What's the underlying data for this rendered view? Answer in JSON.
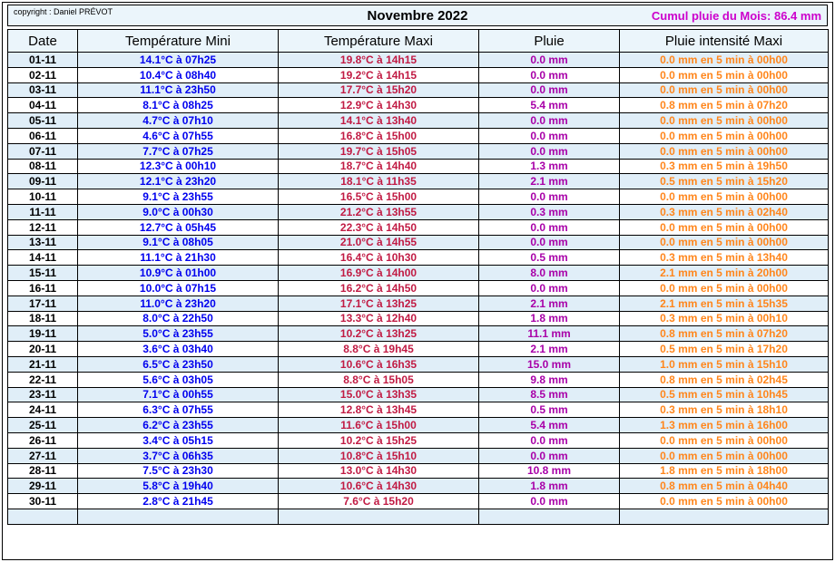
{
  "header": {
    "copyright": "copyright : Daniel PRÉVOT",
    "title": "Novembre 2022",
    "cumul": "Cumul pluie du Mois: 86.4 mm"
  },
  "table": {
    "columns": [
      "Date",
      "Température Mini",
      "Température Maxi",
      "Pluie",
      "Pluie intensité Maxi"
    ],
    "rows": [
      {
        "date": "01-11",
        "tmin": "14.1°C à 07h25",
        "tmax": "19.8°C à 14h15",
        "pluie": "0.0 mm",
        "intensite": "0.0 mm en 5 min à 00h00"
      },
      {
        "date": "02-11",
        "tmin": "10.4°C à 08h40",
        "tmax": "19.2°C à 14h15",
        "pluie": "0.0 mm",
        "intensite": "0.0 mm en 5 min à 00h00"
      },
      {
        "date": "03-11",
        "tmin": "11.1°C à 23h50",
        "tmax": "17.7°C à 15h20",
        "pluie": "0.0 mm",
        "intensite": "0.0 mm en 5 min à 00h00"
      },
      {
        "date": "04-11",
        "tmin": "8.1°C à 08h25",
        "tmax": "12.9°C à 14h30",
        "pluie": "5.4 mm",
        "intensite": "0.8 mm en 5 min à 07h20"
      },
      {
        "date": "05-11",
        "tmin": "4.7°C à 07h10",
        "tmax": "14.1°C à 13h40",
        "pluie": "0.0 mm",
        "intensite": "0.0 mm en 5 min à 00h00"
      },
      {
        "date": "06-11",
        "tmin": "4.6°C à 07h55",
        "tmax": "16.8°C à 15h00",
        "pluie": "0.0 mm",
        "intensite": "0.0 mm en 5 min à 00h00"
      },
      {
        "date": "07-11",
        "tmin": "7.7°C à 07h25",
        "tmax": "19.7°C à 15h05",
        "pluie": "0.0 mm",
        "intensite": "0.0 mm en 5 min à 00h00"
      },
      {
        "date": "08-11",
        "tmin": "12.3°C à 00h10",
        "tmax": "18.7°C à 14h40",
        "pluie": "1.3 mm",
        "intensite": "0.3 mm en 5 min à 19h50"
      },
      {
        "date": "09-11",
        "tmin": "12.1°C à 23h20",
        "tmax": "18.1°C à 11h35",
        "pluie": "2.1 mm",
        "intensite": "0.5 mm en 5 min à 15h20"
      },
      {
        "date": "10-11",
        "tmin": "9.1°C à 23h55",
        "tmax": "16.5°C à 15h00",
        "pluie": "0.0 mm",
        "intensite": "0.0 mm en 5 min à 00h00"
      },
      {
        "date": "11-11",
        "tmin": "9.0°C à 00h30",
        "tmax": "21.2°C à 13h55",
        "pluie": "0.3 mm",
        "intensite": "0.3 mm en 5 min à 02h40"
      },
      {
        "date": "12-11",
        "tmin": "12.7°C à 05h45",
        "tmax": "22.3°C à 14h50",
        "pluie": "0.0 mm",
        "intensite": "0.0 mm en 5 min à 00h00"
      },
      {
        "date": "13-11",
        "tmin": "9.1°C à 08h05",
        "tmax": "21.0°C à 14h55",
        "pluie": "0.0 mm",
        "intensite": "0.0 mm en 5 min à 00h00"
      },
      {
        "date": "14-11",
        "tmin": "11.1°C à 21h30",
        "tmax": "16.4°C à 10h30",
        "pluie": "0.5 mm",
        "intensite": "0.3 mm en 5 min à 13h40"
      },
      {
        "date": "15-11",
        "tmin": "10.9°C à 01h00",
        "tmax": "16.9°C à 14h00",
        "pluie": "8.0 mm",
        "intensite": "2.1 mm en 5 min à 20h00"
      },
      {
        "date": "16-11",
        "tmin": "10.0°C à 07h15",
        "tmax": "16.2°C à 14h50",
        "pluie": "0.0 mm",
        "intensite": "0.0 mm en 5 min à 00h00"
      },
      {
        "date": "17-11",
        "tmin": "11.0°C à 23h20",
        "tmax": "17.1°C à 13h25",
        "pluie": "2.1 mm",
        "intensite": "2.1 mm en 5 min à 15h35"
      },
      {
        "date": "18-11",
        "tmin": "8.0°C à 22h50",
        "tmax": "13.3°C à 12h40",
        "pluie": "1.8 mm",
        "intensite": "0.3 mm en 5 min à 00h10"
      },
      {
        "date": "19-11",
        "tmin": "5.0°C à 23h55",
        "tmax": "10.2°C à 13h25",
        "pluie": "11.1 mm",
        "intensite": "0.8 mm en 5 min à 07h20"
      },
      {
        "date": "20-11",
        "tmin": "3.6°C à 03h40",
        "tmax": "8.8°C à 19h45",
        "pluie": "2.1 mm",
        "intensite": "0.5 mm en 5 min à 17h20"
      },
      {
        "date": "21-11",
        "tmin": "6.5°C à 23h50",
        "tmax": "10.6°C à 16h35",
        "pluie": "15.0 mm",
        "intensite": "1.0 mm en 5 min à 15h10"
      },
      {
        "date": "22-11",
        "tmin": "5.6°C à 03h05",
        "tmax": "8.8°C à 15h05",
        "pluie": "9.8 mm",
        "intensite": "0.8 mm en 5 min à 02h45"
      },
      {
        "date": "23-11",
        "tmin": "7.1°C à 00h55",
        "tmax": "15.0°C à 13h35",
        "pluie": "8.5 mm",
        "intensite": "0.5 mm en 5 min à 10h45"
      },
      {
        "date": "24-11",
        "tmin": "6.3°C à 07h55",
        "tmax": "12.8°C à 13h45",
        "pluie": "0.5 mm",
        "intensite": "0.3 mm en 5 min à 18h10"
      },
      {
        "date": "25-11",
        "tmin": "6.2°C à 23h55",
        "tmax": "11.6°C à 15h00",
        "pluie": "5.4 mm",
        "intensite": "1.3 mm en 5 min à 16h00"
      },
      {
        "date": "26-11",
        "tmin": "3.4°C à 05h15",
        "tmax": "10.2°C à 15h25",
        "pluie": "0.0 mm",
        "intensite": "0.0 mm en 5 min à 00h00"
      },
      {
        "date": "27-11",
        "tmin": "3.7°C à 06h35",
        "tmax": "10.8°C à 15h10",
        "pluie": "0.0 mm",
        "intensite": "0.0 mm en 5 min à 00h00"
      },
      {
        "date": "28-11",
        "tmin": "7.5°C à 23h30",
        "tmax": "13.0°C à 14h30",
        "pluie": "10.8 mm",
        "intensite": "1.8 mm en 5 min à 18h00"
      },
      {
        "date": "29-11",
        "tmin": "5.8°C à 19h40",
        "tmax": "10.6°C à 14h30",
        "pluie": "1.8 mm",
        "intensite": "0.8 mm en 5 min à 04h40"
      },
      {
        "date": "30-11",
        "tmin": "2.8°C à 21h45",
        "tmax": "7.6°C à 15h20",
        "pluie": "0.0 mm",
        "intensite": "0.0 mm en 5 min à 00h00"
      }
    ],
    "trailing_empty_row": true
  },
  "colors": {
    "band_bg": "#EBF5FB",
    "alt_row_bg": "#E0EEF8",
    "tmin": "#0000EE",
    "tmax": "#C11B44",
    "pluie": "#A800A8",
    "cumul": "#CC00CC",
    "intensite": "#FF861C"
  }
}
